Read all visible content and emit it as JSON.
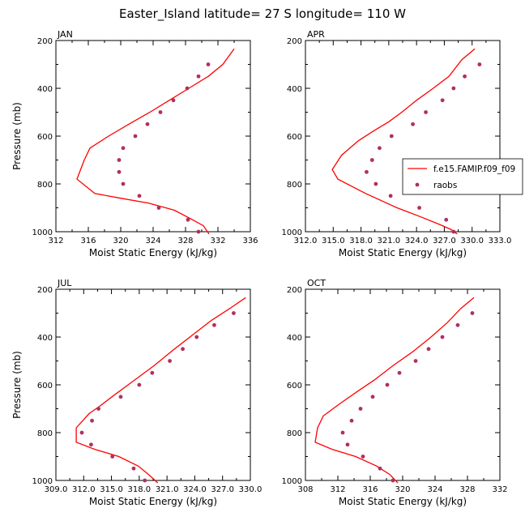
{
  "figure": {
    "title": "Easter_Island  latitude= 27 S longitude= 110 W",
    "legend": {
      "entries": [
        {
          "label": "f.e15.FAMIP.f09_f09",
          "style": "line",
          "color": "#ff0000"
        },
        {
          "label": "raobs",
          "style": "marker",
          "color": "#b03060"
        }
      ]
    },
    "colors": {
      "model": "#ff0000",
      "obs": "#b03060"
    }
  },
  "chart_data": [
    {
      "type": "line",
      "panel": "JAN",
      "xlabel": "Moist Static Energy (kJ/kg)",
      "ylabel": "Pressure (mb)",
      "xlim": [
        312,
        336
      ],
      "ylim": [
        200,
        1000
      ],
      "y_inverted": true,
      "xticks": [
        "312",
        "316",
        "320",
        "324",
        "328",
        "332",
        "336"
      ],
      "yticks": [
        "200",
        "400",
        "600",
        "800",
        "1000"
      ],
      "series": [
        {
          "name": "f.e15.FAMIP.f09_f09",
          "style": "line",
          "x": [
            334.0,
            332.6,
            330.8,
            328.4,
            326.0,
            323.6,
            321.0,
            318.5,
            316.2,
            315.5,
            314.6,
            316.8,
            320.0,
            323.4,
            326.6,
            328.6,
            330.2,
            330.9
          ],
          "y": [
            235,
            300,
            350,
            400,
            450,
            500,
            550,
            600,
            650,
            700,
            780,
            840,
            860,
            880,
            910,
            945,
            975,
            1010
          ]
        },
        {
          "name": "raobs",
          "style": "marker",
          "x": [
            330.8,
            329.6,
            328.2,
            326.5,
            324.9,
            323.3,
            321.8,
            320.3,
            319.8,
            319.8,
            320.3,
            322.3,
            324.7,
            328.3,
            329.6
          ],
          "y": [
            300,
            350,
            400,
            450,
            500,
            550,
            600,
            650,
            700,
            750,
            800,
            850,
            900,
            950,
            1000
          ]
        }
      ]
    },
    {
      "type": "line",
      "panel": "APR",
      "xlabel": "Moist Static Energy (kJ/kg)",
      "ylabel": "",
      "xlim": [
        312,
        333
      ],
      "ylim": [
        200,
        1000
      ],
      "y_inverted": true,
      "xticks": [
        "312.0",
        "315.0",
        "318.0",
        "321.0",
        "324.0",
        "327.0",
        "330.0",
        "333.0"
      ],
      "yticks": [
        "200",
        "400",
        "600",
        "800",
        "1000"
      ],
      "series": [
        {
          "name": "f.e15.FAMIP.f09_f09",
          "style": "line",
          "x": [
            330.3,
            328.9,
            327.5,
            325.8,
            324.0,
            322.4,
            321.0,
            319.3,
            317.7,
            315.9,
            314.9,
            315.5,
            318.5,
            321.9,
            324.6,
            326.5,
            327.7,
            328.4
          ],
          "y": [
            235,
            280,
            350,
            400,
            450,
            500,
            540,
            580,
            620,
            680,
            740,
            780,
            840,
            900,
            940,
            970,
            990,
            1010
          ]
        },
        {
          "name": "raobs",
          "style": "marker",
          "x": [
            330.8,
            329.2,
            328.0,
            326.8,
            325.0,
            323.6,
            321.3,
            320.0,
            319.2,
            318.6,
            319.6,
            321.2,
            324.3,
            327.2,
            328.0
          ],
          "y": [
            300,
            350,
            400,
            450,
            500,
            550,
            600,
            650,
            700,
            750,
            800,
            850,
            900,
            950,
            1000
          ]
        }
      ]
    },
    {
      "type": "line",
      "panel": "JUL",
      "xlabel": "Moist Static Energy (kJ/kg)",
      "ylabel": "Pressure (mb)",
      "xlim": [
        309,
        330
      ],
      "ylim": [
        200,
        1000
      ],
      "y_inverted": true,
      "xticks": [
        "309.0",
        "312.0",
        "315.0",
        "318.0",
        "321.0",
        "324.0",
        "327.0",
        "330.0"
      ],
      "yticks": [
        "200",
        "400",
        "600",
        "800",
        "1000"
      ],
      "series": [
        {
          "name": "f.e15.FAMIP.f09_f09",
          "style": "line",
          "x": [
            329.5,
            327.8,
            325.8,
            323.8,
            321.8,
            319.6,
            317.5,
            315.4,
            313.7,
            312.6,
            311.2,
            311.2,
            313.2,
            315.8,
            317.9,
            319.0,
            320.0
          ],
          "y": [
            235,
            280,
            330,
            390,
            450,
            520,
            580,
            640,
            690,
            720,
            780,
            840,
            870,
            900,
            940,
            975,
            1010
          ]
        },
        {
          "name": "raobs",
          "style": "marker",
          "x": [
            328.2,
            326.1,
            324.2,
            322.7,
            321.3,
            319.4,
            318.0,
            316.0,
            313.6,
            312.9,
            311.8,
            312.8,
            315.1,
            317.4,
            318.6
          ],
          "y": [
            300,
            350,
            400,
            450,
            500,
            550,
            600,
            650,
            700,
            750,
            800,
            850,
            900,
            950,
            1000
          ]
        }
      ]
    },
    {
      "type": "line",
      "panel": "OCT",
      "xlabel": "Moist Static Energy (kJ/kg)",
      "ylabel": "",
      "xlim": [
        308,
        332
      ],
      "ylim": [
        200,
        1000
      ],
      "y_inverted": true,
      "xticks": [
        "308",
        "312",
        "316",
        "320",
        "324",
        "328",
        "332"
      ],
      "yticks": [
        "200",
        "400",
        "600",
        "800",
        "1000"
      ],
      "series": [
        {
          "name": "f.e15.FAMIP.f09_f09",
          "style": "line",
          "x": [
            328.8,
            327.2,
            325.5,
            323.5,
            321.3,
            318.8,
            316.5,
            314.3,
            312.2,
            310.2,
            309.5,
            309.2,
            311.3,
            314.2,
            316.8,
            318.4,
            319.4
          ],
          "y": [
            235,
            280,
            340,
            400,
            460,
            520,
            580,
            630,
            680,
            730,
            780,
            840,
            870,
            900,
            940,
            975,
            1010
          ]
        },
        {
          "name": "raobs",
          "style": "marker",
          "x": [
            328.6,
            326.8,
            324.9,
            323.2,
            321.6,
            319.6,
            318.1,
            316.3,
            314.8,
            313.7,
            312.6,
            313.2,
            315.1,
            317.2,
            318.8
          ],
          "y": [
            300,
            350,
            400,
            450,
            500,
            550,
            600,
            650,
            700,
            750,
            800,
            850,
            900,
            950,
            1000
          ]
        }
      ]
    }
  ]
}
